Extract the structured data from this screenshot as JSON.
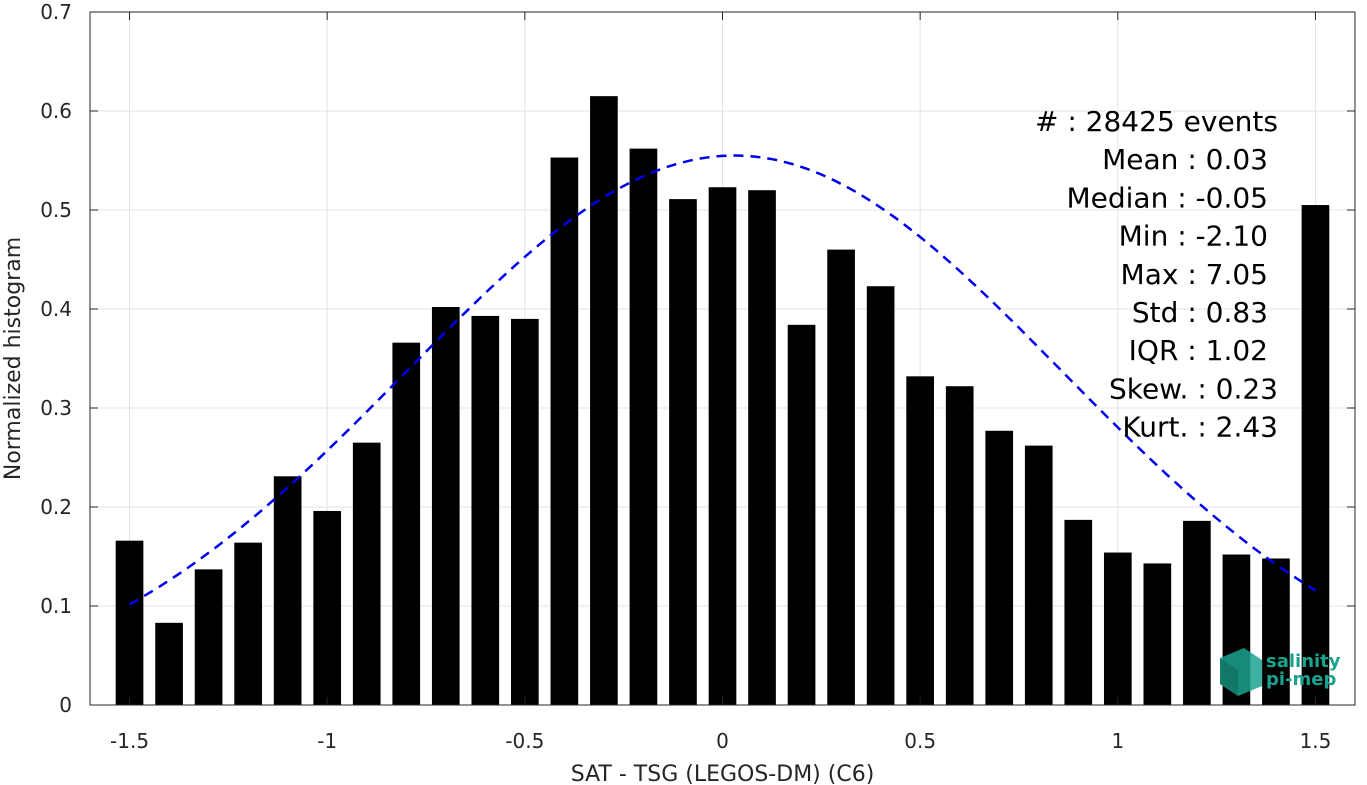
{
  "chart_data": {
    "type": "bar",
    "xlabel": "SAT - TSG (LEGOS-DM) (C6)",
    "ylabel": "Normalized histogram",
    "xlim": [
      -1.6,
      1.6
    ],
    "ylim": [
      0,
      0.7
    ],
    "x_ticks": [
      -1.5,
      -1,
      -0.5,
      0,
      0.5,
      1,
      1.5
    ],
    "x_tick_labels": [
      "-1.5",
      "-1",
      "-0.5",
      "0",
      "0.5",
      "1",
      "1.5"
    ],
    "y_ticks": [
      0,
      0.1,
      0.2,
      0.3,
      0.4,
      0.5,
      0.6,
      0.7
    ],
    "y_tick_labels": [
      "0",
      "0.1",
      "0.2",
      "0.3",
      "0.4",
      "0.5",
      "0.6",
      "0.7"
    ],
    "grid": true,
    "bar_color": "#000000",
    "curve_color": "#0000ee",
    "bins": [
      -1.5,
      -1.4,
      -1.3,
      -1.2,
      -1.1,
      -1.0,
      -0.9,
      -0.8,
      -0.7,
      -0.6,
      -0.5,
      -0.4,
      -0.3,
      -0.2,
      -0.1,
      0.0,
      0.1,
      0.2,
      0.3,
      0.4,
      0.5,
      0.6,
      0.7,
      0.8,
      0.9,
      1.0,
      1.1,
      1.2,
      1.3,
      1.4,
      1.5
    ],
    "values": [
      0.166,
      0.083,
      0.137,
      0.164,
      0.231,
      0.196,
      0.265,
      0.366,
      0.402,
      0.393,
      0.39,
      0.553,
      0.615,
      0.562,
      0.511,
      0.523,
      0.52,
      0.384,
      0.46,
      0.423,
      0.332,
      0.322,
      0.277,
      0.262,
      0.187,
      0.154,
      0.143,
      0.186,
      0.152,
      0.148,
      0.505
    ],
    "fit": {
      "type": "gaussian",
      "mean": 0.03,
      "std": 0.83,
      "peak": 0.555,
      "x_range": [
        -1.5,
        1.5
      ],
      "style": "dashed"
    },
    "stats_lines": [
      "#  : 28425 events",
      "Mean : 0.03",
      "Median : -0.05",
      "Min : -2.10",
      "Max : 7.05",
      "Std : 0.83",
      "IQR : 1.02",
      "Skew. : 0.23",
      "Kurt. : 2.43"
    ],
    "logo": {
      "line1": "salinity",
      "line2": "pi-mep",
      "color": "#1aa38f"
    }
  }
}
